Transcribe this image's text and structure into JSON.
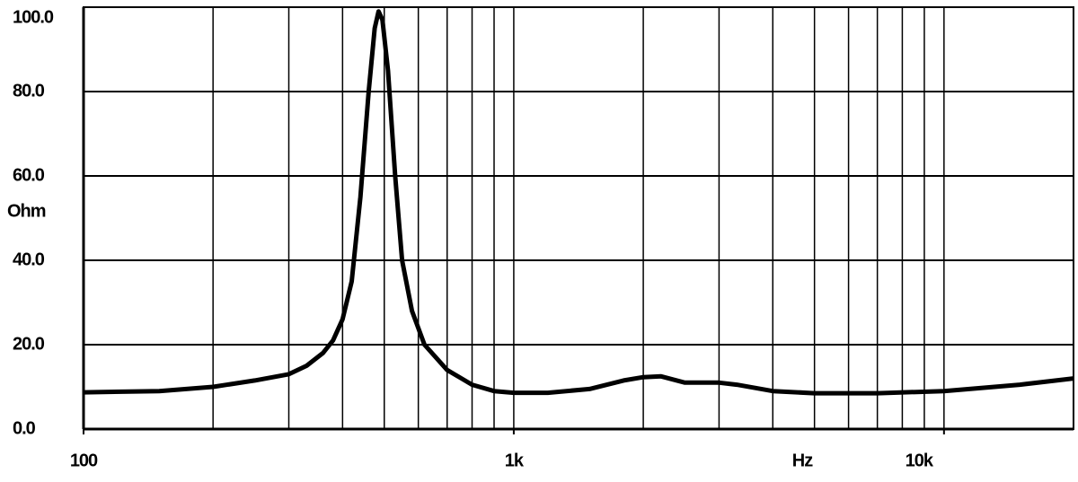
{
  "chart_data": {
    "type": "line",
    "x_label": "Hz",
    "y_label": "Ohm",
    "x_scale": "log",
    "xlim": [
      100,
      20000
    ],
    "ylim": [
      0,
      100
    ],
    "xticks": [
      {
        "value": 100,
        "label": "100"
      },
      {
        "value": 1000,
        "label": "1k"
      },
      {
        "value": 10000,
        "label": "10k"
      }
    ],
    "x_grid": [
      200,
      300,
      400,
      500,
      600,
      700,
      800,
      900,
      1000,
      2000,
      3000,
      4000,
      5000,
      6000,
      7000,
      8000,
      9000,
      10000
    ],
    "yticks": [
      {
        "value": 0,
        "label": "0.0"
      },
      {
        "value": 20,
        "label": "20.0"
      },
      {
        "value": 40,
        "label": "40.0"
      },
      {
        "value": 60,
        "label": "60.0"
      },
      {
        "value": 80,
        "label": "80.0"
      },
      {
        "value": 100,
        "label": "100.0"
      }
    ],
    "grid": true,
    "series": [
      {
        "color": "#000000",
        "x": [
          100,
          150,
          200,
          250,
          300,
          330,
          360,
          380,
          400,
          420,
          440,
          460,
          475,
          485,
          495,
          510,
          530,
          550,
          580,
          620,
          700,
          800,
          900,
          1000,
          1200,
          1500,
          1800,
          2000,
          2200,
          2500,
          3000,
          3300,
          4000,
          5000,
          7000,
          10000,
          15000,
          20000
        ],
        "values": [
          8.7,
          9,
          10,
          11.5,
          13,
          15,
          18,
          21,
          26,
          35,
          55,
          80,
          95,
          99,
          97,
          85,
          60,
          40,
          28,
          20,
          14,
          10.5,
          9,
          8.6,
          8.6,
          9.5,
          11.5,
          12.3,
          12.5,
          11,
          11,
          10.5,
          9,
          8.5,
          8.5,
          9,
          10.5,
          12
        ]
      }
    ]
  }
}
